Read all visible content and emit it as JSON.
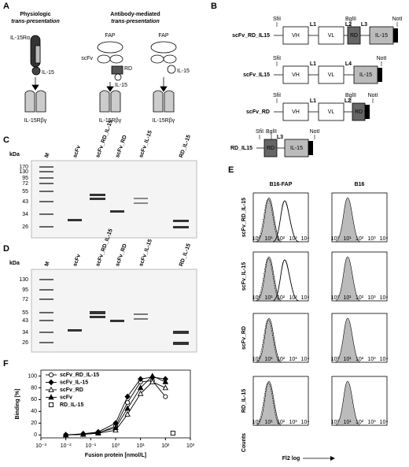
{
  "panel_a": {
    "letter": "A",
    "left_title": [
      "Physiologic",
      "trans-presentation"
    ],
    "right_title": [
      "Antibody-mediated",
      "trans-presentation"
    ],
    "labels": {
      "il15ra": "IL-15Rα",
      "il15_1": "IL-15",
      "fap_1": "FAP",
      "scfv": "scFv",
      "rd": "RD",
      "il15_2": "IL-15",
      "fap_2": "FAP",
      "il15_3": "IL-15"
    },
    "receptors": [
      "IL-15Rβγ",
      "IL-15Rβγ",
      "IL-15Rβγ"
    ]
  },
  "panel_b": {
    "letter": "B",
    "constructs": [
      {
        "name": "scFv_RD_IL15",
        "sites": [
          "SfiI",
          "BglII",
          "NotI"
        ],
        "linkers": [
          "L1",
          "L2",
          "L3"
        ],
        "domains": [
          "VH",
          "VL",
          "RD",
          "IL-15"
        ]
      },
      {
        "name": "scFv_IL15",
        "sites": [
          "SfiI",
          "NotI"
        ],
        "linkers": [
          "L1",
          "L4"
        ],
        "domains": [
          "VH",
          "VL",
          "IL-15"
        ]
      },
      {
        "name": "scFv_RD",
        "sites": [
          "SfiI",
          "BglII",
          "NotI"
        ],
        "linkers": [
          "L1",
          "L2"
        ],
        "domains": [
          "VH",
          "VL",
          "RD"
        ]
      },
      {
        "name": "RD_IL15",
        "sites": [
          "SfiI",
          "BglII",
          "NotI"
        ],
        "linkers": [
          "L3"
        ],
        "domains": [
          "RD",
          "IL-15"
        ]
      }
    ]
  },
  "panel_c": {
    "letter": "C",
    "unit": "kDa",
    "ladder": [
      "170",
      "130",
      "95",
      "72",
      "55",
      "43",
      "34",
      "26"
    ],
    "lanes": [
      "M",
      "scFv",
      "scFv_RD_IL-15",
      "scFv_RD",
      "scFv_IL-15",
      "RD_IL-15"
    ]
  },
  "panel_d": {
    "letter": "D",
    "unit": "kDa",
    "ladder": [
      "130",
      "95",
      "72",
      "55",
      "43",
      "34",
      "26"
    ],
    "lanes": [
      "M",
      "scFv",
      "scFv_RD_IL-15",
      "scFv_RD",
      "scFv_IL-15",
      "RD_IL-15"
    ]
  },
  "panel_e": {
    "letter": "E",
    "columns": [
      "B16-FAP",
      "B16"
    ],
    "rows": [
      "scFv_RD_IL-15",
      "scFv_IL-15",
      "scFv_RD",
      "RD_IL-15"
    ],
    "xtick_labels": [
      "10⁰",
      "10¹",
      "10²",
      "10³",
      "10⁴"
    ],
    "ylabel": "Counts",
    "xlabel": "Fl2 log"
  },
  "panel_f": {
    "letter": "F",
    "chart_data": {
      "type": "line",
      "ylabel": "Binding [%]",
      "xlabel": "Fusion protein [nmol/L]",
      "xlog": true,
      "xlim": [
        0.001,
        1000
      ],
      "xticks": [
        {
          "value": 0.001,
          "label": "10⁻³"
        },
        {
          "value": 0.01,
          "label": "10⁻²"
        },
        {
          "value": 0.1,
          "label": "10⁻¹"
        },
        {
          "value": 1,
          "label": "10⁰"
        },
        {
          "value": 10,
          "label": "10¹"
        },
        {
          "value": 100,
          "label": "10²"
        },
        {
          "value": 1000,
          "label": "10³"
        }
      ],
      "ylim": [
        -5,
        110
      ],
      "yticks": [
        0,
        20,
        40,
        60,
        80,
        100
      ],
      "series": [
        {
          "name": "scFv_RD_IL-15",
          "marker": "circle-open",
          "color": "#000000",
          "x": [
            0.01,
            0.05,
            0.2,
            1,
            3,
            10,
            30,
            100
          ],
          "values": [
            0,
            1,
            3,
            15,
            55,
            90,
            92,
            65
          ]
        },
        {
          "name": "scFv_IL-15",
          "marker": "diamond-filled",
          "color": "#000000",
          "x": [
            0.01,
            0.05,
            0.2,
            1,
            3,
            10,
            30,
            100
          ],
          "values": [
            0,
            2,
            5,
            20,
            65,
            95,
            98,
            95
          ]
        },
        {
          "name": "scFv_RD",
          "marker": "triangle-open",
          "color": "#000000",
          "x": [
            0.01,
            0.05,
            0.2,
            1,
            3,
            10,
            30,
            100
          ],
          "values": [
            0,
            1,
            3,
            8,
            35,
            70,
            90,
            80
          ]
        },
        {
          "name": "scFv",
          "marker": "triangle-filled",
          "color": "#000000",
          "x": [
            0.01,
            0.05,
            0.2,
            1,
            3,
            10,
            30,
            100
          ],
          "values": [
            0,
            1,
            4,
            12,
            45,
            80,
            100,
            90
          ]
        },
        {
          "name": "RD_IL-15",
          "marker": "square-open",
          "color": "#000000",
          "x": [
            200
          ],
          "values": [
            3
          ]
        }
      ]
    }
  }
}
